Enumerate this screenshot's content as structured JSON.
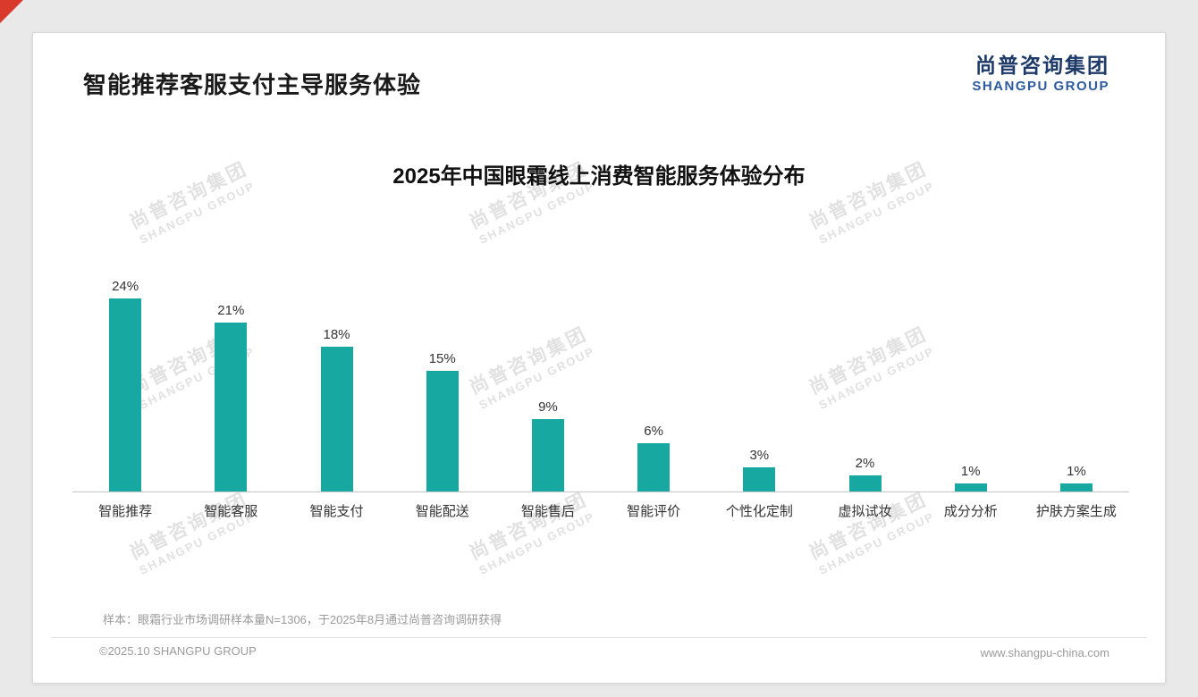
{
  "page": {
    "title": "智能推荐客服支付主导服务体验",
    "logo": {
      "cn": "尚普咨询集团",
      "en": "SHANGPU GROUP"
    },
    "note": "样本：眼霜行业市场调研样本量N=1306，于2025年8月通过尚普咨询调研获得",
    "footer": {
      "copyright": "©2025.10 SHANGPU GROUP",
      "website": "www.shangpu-china.com"
    },
    "watermark": {
      "line1": "尚普咨询集团",
      "line2": "SHANGPU GROUP"
    }
  },
  "chart_data": {
    "type": "bar",
    "title": "2025年中国眼霜线上消费智能服务体验分布",
    "categories": [
      "智能推荐",
      "智能客服",
      "智能支付",
      "智能配送",
      "智能售后",
      "智能评价",
      "个性化定制",
      "虚拟试妆",
      "成分分析",
      "护肤方案生成"
    ],
    "values": [
      24,
      21,
      18,
      15,
      9,
      6,
      3,
      2,
      1,
      1
    ],
    "value_labels": [
      "24%",
      "21%",
      "18%",
      "15%",
      "9%",
      "6%",
      "3%",
      "2%",
      "1%",
      "1%"
    ],
    "unit": "%",
    "ylim": [
      0,
      25
    ],
    "bar_color": "#17A9A1",
    "grid": false,
    "legend": "none"
  }
}
